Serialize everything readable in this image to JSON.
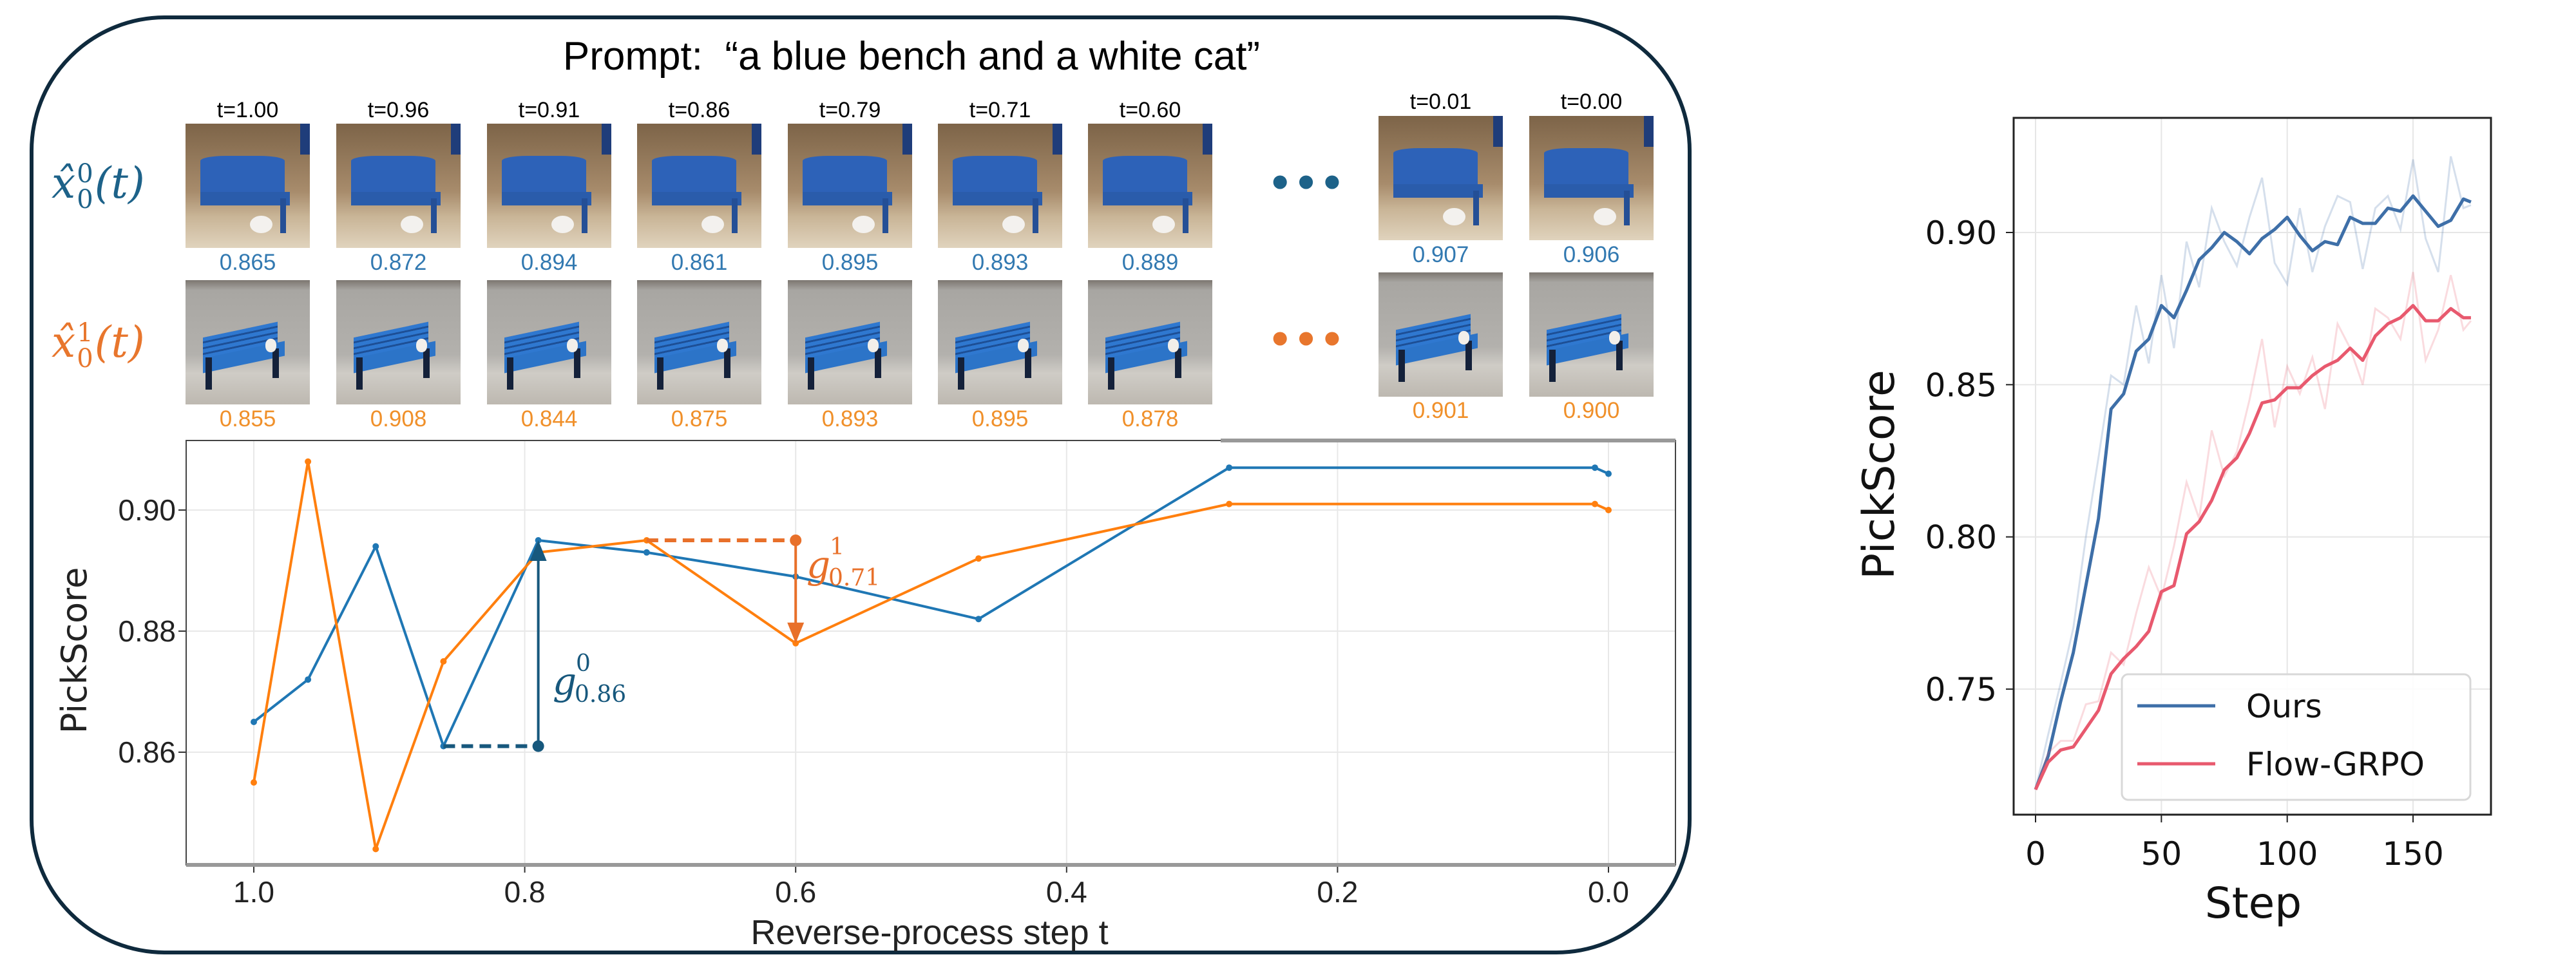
{
  "left_panel": {
    "title": "Prompt:  “a blue bench and a white cat”",
    "row_labels": [
      {
        "base": "x̂",
        "sup": "0",
        "sub": "0",
        "arg": "(t)",
        "color": "#1d6289"
      },
      {
        "base": "x̂",
        "sup": "1",
        "sub": "0",
        "arg": "(t)",
        "color": "#e8762d"
      }
    ],
    "ellipsis": "•••",
    "value_colors": {
      "row0": "#3279b1",
      "row1": "#f0902a"
    },
    "columns": [
      {
        "t": "t=1.00",
        "v0": "0.865",
        "v1": "0.855"
      },
      {
        "t": "t=0.96",
        "v0": "0.872",
        "v1": "0.908"
      },
      {
        "t": "t=0.91",
        "v0": "0.894",
        "v1": "0.844"
      },
      {
        "t": "t=0.86",
        "v0": "0.861",
        "v1": "0.875"
      },
      {
        "t": "t=0.79",
        "v0": "0.895",
        "v1": "0.893"
      },
      {
        "t": "t=0.71",
        "v0": "0.893",
        "v1": "0.895"
      },
      {
        "t": "t=0.60",
        "v0": "0.889",
        "v1": "0.878"
      },
      {
        "t": "t=0.01",
        "v0": "0.907",
        "v1": "0.901"
      },
      {
        "t": "t=0.00",
        "v0": "0.906",
        "v1": "0.900"
      }
    ]
  },
  "chart_data": [
    {
      "type": "line",
      "xlabel": "Reverse-process step t",
      "ylabel": "PickScore",
      "xlim": [
        1.05,
        -0.05
      ],
      "ylim": [
        0.8414,
        0.9115
      ],
      "x_inverted": true,
      "grid": true,
      "xticks": [
        "1.0",
        "0.8",
        "0.6",
        "0.4",
        "0.2",
        "0.0"
      ],
      "yticks": [
        "0.86",
        "0.88",
        "0.90"
      ],
      "series": [
        {
          "color": "#1f77b4",
          "x": [
            1.0,
            0.96,
            0.91,
            0.86,
            0.79,
            0.71,
            0.6,
            0.465,
            0.28,
            0.01,
            0.0
          ],
          "y": [
            0.865,
            0.872,
            0.894,
            0.861,
            0.895,
            0.893,
            0.889,
            0.882,
            0.907,
            0.907,
            0.906
          ]
        },
        {
          "color": "#ff7f0e",
          "x": [
            1.0,
            0.96,
            0.91,
            0.86,
            0.79,
            0.71,
            0.6,
            0.465,
            0.28,
            0.01,
            0.0
          ],
          "y": [
            0.855,
            0.908,
            0.844,
            0.875,
            0.893,
            0.895,
            0.878,
            0.892,
            0.901,
            0.901,
            0.9
          ]
        }
      ],
      "annotations": [
        {
          "label": "g",
          "sup": "0",
          "sub": "0.86",
          "color": "#17587d",
          "from": [
            0.86,
            0.861
          ],
          "corner": [
            0.79,
            0.861
          ],
          "to": [
            0.79,
            0.895
          ]
        },
        {
          "label": "g",
          "sup": "1",
          "sub": "0.71",
          "color": "#e8702a",
          "from": [
            0.71,
            0.895
          ],
          "corner": [
            0.6,
            0.895
          ],
          "to": [
            0.6,
            0.878
          ]
        }
      ]
    },
    {
      "type": "line",
      "xlabel": "Step",
      "ylabel": "PickScore",
      "xlim": [
        -8.7,
        181
      ],
      "ylim": [
        0.7088,
        0.9377
      ],
      "grid": true,
      "legend": "lower-right",
      "xticks": [
        "0",
        "50",
        "100",
        "150"
      ],
      "yticks": [
        "0.75",
        "0.80",
        "0.85",
        "0.90"
      ],
      "x": [
        0,
        5,
        10,
        15,
        20,
        25,
        30,
        35,
        40,
        45,
        50,
        55,
        60,
        65,
        70,
        75,
        80,
        85,
        90,
        95,
        100,
        105,
        110,
        115,
        120,
        125,
        130,
        135,
        140,
        145,
        150,
        155,
        160,
        165,
        170,
        173
      ],
      "series": [
        {
          "name": "Ours",
          "color": "#3e6fa8",
          "smoothed": [
            0.717,
            0.728,
            0.746,
            0.762,
            0.784,
            0.806,
            0.842,
            0.847,
            0.861,
            0.865,
            0.876,
            0.872,
            0.881,
            0.891,
            0.895,
            0.9,
            0.897,
            0.893,
            0.898,
            0.901,
            0.905,
            0.899,
            0.894,
            0.897,
            0.896,
            0.905,
            0.903,
            0.903,
            0.908,
            0.907,
            0.912,
            0.907,
            0.902,
            0.904,
            0.911,
            0.91
          ],
          "raw": [
            0.717,
            0.735,
            0.752,
            0.77,
            0.8,
            0.826,
            0.853,
            0.85,
            0.876,
            0.857,
            0.886,
            0.862,
            0.897,
            0.882,
            0.908,
            0.897,
            0.889,
            0.905,
            0.918,
            0.89,
            0.883,
            0.908,
            0.887,
            0.902,
            0.912,
            0.91,
            0.888,
            0.908,
            0.912,
            0.901,
            0.924,
            0.898,
            0.887,
            0.925,
            0.908,
            0.909
          ]
        },
        {
          "name": "Flow-GRPO",
          "color": "#e8596e",
          "smoothed": [
            0.717,
            0.726,
            0.73,
            0.731,
            0.737,
            0.743,
            0.755,
            0.76,
            0.764,
            0.769,
            0.782,
            0.784,
            0.801,
            0.805,
            0.812,
            0.822,
            0.826,
            0.834,
            0.844,
            0.845,
            0.849,
            0.849,
            0.853,
            0.856,
            0.858,
            0.862,
            0.858,
            0.866,
            0.87,
            0.872,
            0.876,
            0.871,
            0.871,
            0.875,
            0.872,
            0.872
          ],
          "raw": [
            0.717,
            0.729,
            0.733,
            0.733,
            0.745,
            0.746,
            0.762,
            0.758,
            0.775,
            0.79,
            0.78,
            0.797,
            0.818,
            0.806,
            0.835,
            0.82,
            0.828,
            0.845,
            0.865,
            0.836,
            0.856,
            0.847,
            0.859,
            0.842,
            0.87,
            0.862,
            0.85,
            0.875,
            0.872,
            0.865,
            0.887,
            0.858,
            0.868,
            0.886,
            0.868,
            0.871
          ]
        }
      ]
    }
  ]
}
